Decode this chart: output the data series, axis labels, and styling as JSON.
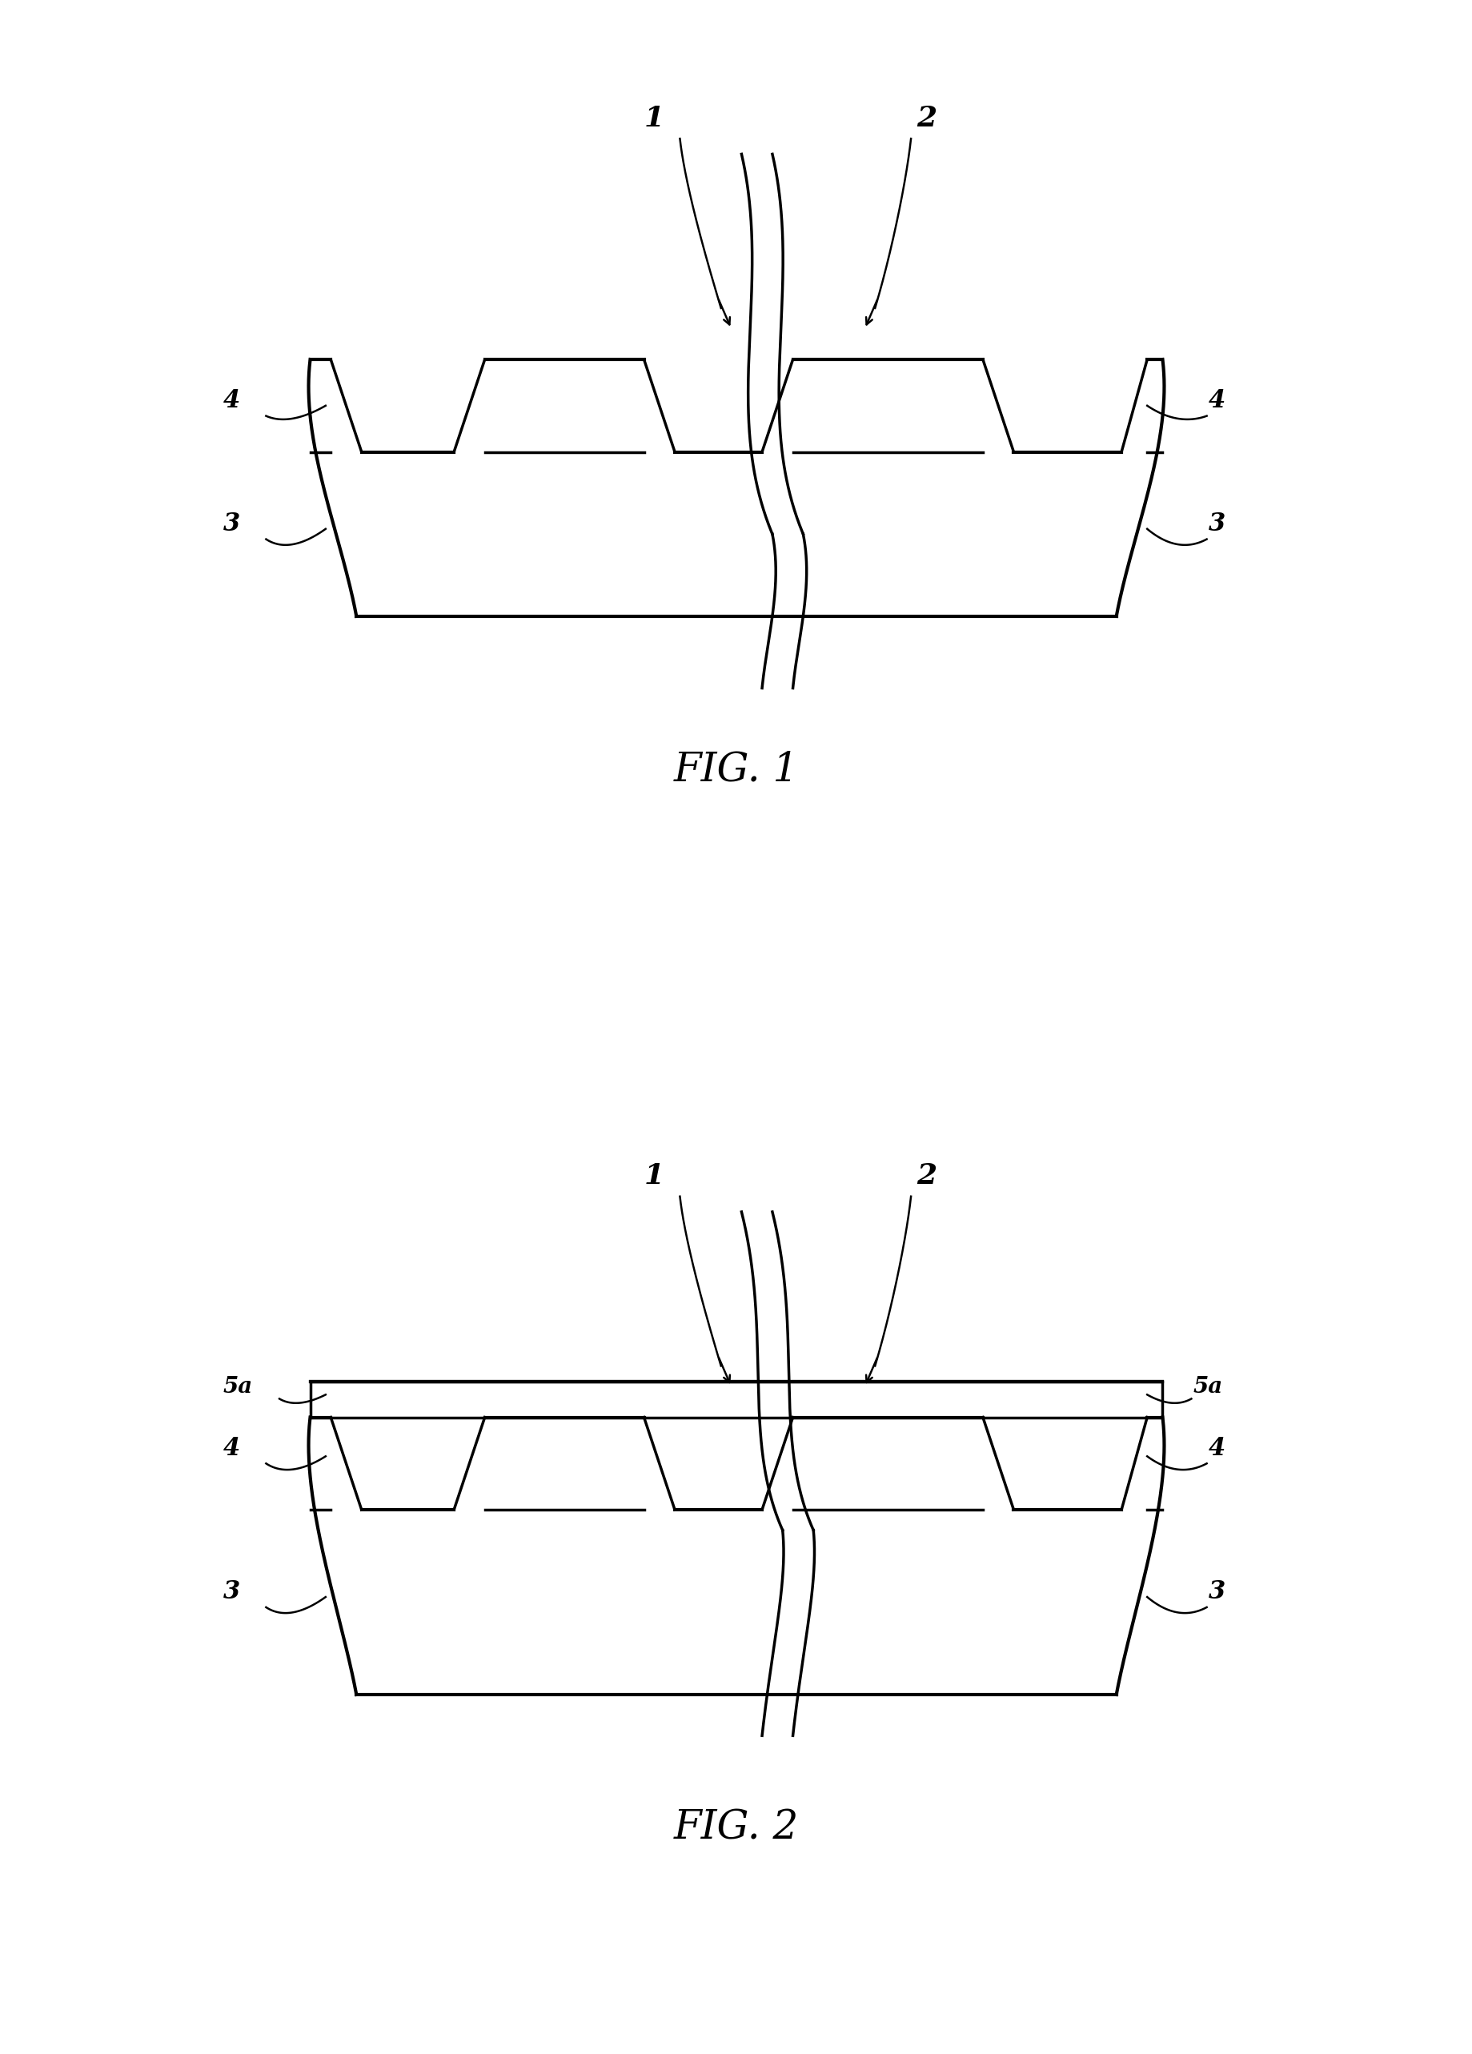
{
  "fig_title_1": "FIG. 1",
  "fig_title_2": "FIG. 2",
  "bg_color": "#ffffff",
  "line_color": "#000000",
  "line_width": 2.5,
  "thin_lw": 1.8,
  "fig1": {
    "label_1": "1",
    "label_2": "2",
    "label_3_left": "3",
    "label_3_right": "3",
    "label_4_left": "4",
    "label_4_right": "4"
  },
  "fig2": {
    "label_1": "1",
    "label_2": "2",
    "label_3_left": "3",
    "label_3_right": "3",
    "label_4_left": "4",
    "label_4_right": "4",
    "label_5a_left": "5a",
    "label_5a_right": "5a"
  }
}
